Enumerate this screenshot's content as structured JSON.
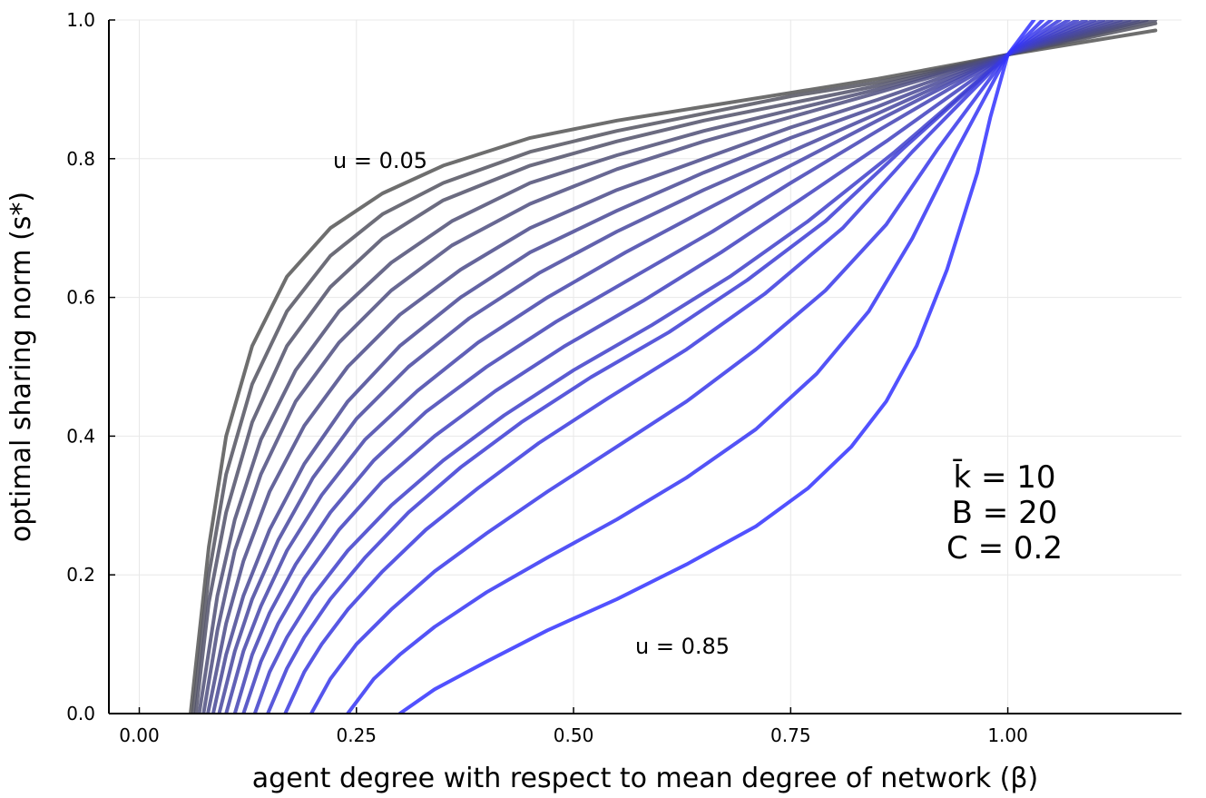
{
  "chart_data": {
    "type": "line",
    "title": "",
    "xlabel": "agent degree with respect to mean degree of network (β)",
    "ylabel": "optimal sharing norm (s*)",
    "xlim": [
      -0.035,
      1.2
    ],
    "ylim": [
      0,
      1
    ],
    "x_ticks": [
      0.0,
      0.25,
      0.5,
      0.75,
      1.0
    ],
    "x_tick_labels": [
      "0.00",
      "0.25",
      "0.50",
      "0.75",
      "1.00"
    ],
    "y_ticks": [
      0.0,
      0.2,
      0.4,
      0.6,
      0.8,
      1.0
    ],
    "y_tick_labels": [
      "0.0",
      "0.2",
      "0.4",
      "0.6",
      "0.8",
      "1.0"
    ],
    "grid": true,
    "legend": "none",
    "color_low_u": "#555555",
    "color_high_u": "#3333ff",
    "series_note": "17 curves for u = 0.05 to 0.85 in steps of 0.05; all pass through (1.0, 0.95)",
    "series": [
      {
        "u": 0.05,
        "x": [
          0.059,
          0.08,
          0.1,
          0.13,
          0.17,
          0.22,
          0.28,
          0.35,
          0.45,
          0.55,
          0.65,
          0.75,
          0.85,
          1.0,
          1.17
        ],
        "y": [
          0.0,
          0.24,
          0.4,
          0.53,
          0.63,
          0.7,
          0.75,
          0.79,
          0.83,
          0.855,
          0.875,
          0.895,
          0.915,
          0.95,
          0.985
        ]
      },
      {
        "u": 0.1,
        "x": [
          0.062,
          0.08,
          0.1,
          0.13,
          0.17,
          0.22,
          0.28,
          0.35,
          0.45,
          0.55,
          0.65,
          0.75,
          0.85,
          1.0,
          1.17
        ],
        "y": [
          0.0,
          0.2,
          0.345,
          0.475,
          0.58,
          0.66,
          0.72,
          0.765,
          0.81,
          0.84,
          0.865,
          0.89,
          0.91,
          0.95,
          0.995
        ]
      },
      {
        "u": 0.15,
        "x": [
          0.065,
          0.08,
          0.1,
          0.13,
          0.17,
          0.22,
          0.28,
          0.35,
          0.45,
          0.55,
          0.65,
          0.75,
          0.85,
          1.0,
          1.17
        ],
        "y": [
          0.0,
          0.16,
          0.29,
          0.42,
          0.53,
          0.615,
          0.685,
          0.74,
          0.79,
          0.825,
          0.855,
          0.88,
          0.905,
          0.95,
          1.0
        ]
      },
      {
        "u": 0.2,
        "x": [
          0.069,
          0.09,
          0.11,
          0.14,
          0.18,
          0.23,
          0.29,
          0.36,
          0.45,
          0.55,
          0.65,
          0.75,
          0.85,
          1.0,
          1.16
        ],
        "y": [
          0.0,
          0.17,
          0.28,
          0.395,
          0.495,
          0.58,
          0.65,
          0.71,
          0.765,
          0.805,
          0.84,
          0.87,
          0.9,
          0.95,
          1.0
        ]
      },
      {
        "u": 0.25,
        "x": [
          0.074,
          0.09,
          0.11,
          0.14,
          0.18,
          0.23,
          0.29,
          0.36,
          0.45,
          0.55,
          0.65,
          0.75,
          0.85,
          1.0,
          1.15
        ],
        "y": [
          0.0,
          0.12,
          0.235,
          0.345,
          0.45,
          0.535,
          0.61,
          0.675,
          0.735,
          0.785,
          0.825,
          0.86,
          0.895,
          0.95,
          1.0
        ]
      },
      {
        "u": 0.3,
        "x": [
          0.079,
          0.1,
          0.12,
          0.15,
          0.19,
          0.24,
          0.3,
          0.37,
          0.45,
          0.55,
          0.65,
          0.75,
          0.85,
          1.0,
          1.14
        ],
        "y": [
          0.0,
          0.13,
          0.22,
          0.32,
          0.415,
          0.5,
          0.575,
          0.64,
          0.7,
          0.755,
          0.8,
          0.845,
          0.885,
          0.95,
          1.0
        ]
      },
      {
        "u": 0.35,
        "x": [
          0.085,
          0.1,
          0.12,
          0.15,
          0.19,
          0.24,
          0.3,
          0.37,
          0.45,
          0.55,
          0.65,
          0.75,
          0.85,
          1.0,
          1.13
        ],
        "y": [
          0.0,
          0.085,
          0.17,
          0.265,
          0.36,
          0.45,
          0.53,
          0.6,
          0.665,
          0.725,
          0.78,
          0.83,
          0.875,
          0.95,
          1.0
        ]
      },
      {
        "u": 0.4,
        "x": [
          0.092,
          0.11,
          0.13,
          0.16,
          0.2,
          0.25,
          0.31,
          0.38,
          0.46,
          0.55,
          0.65,
          0.75,
          0.85,
          1.0,
          1.12
        ],
        "y": [
          0.0,
          0.09,
          0.165,
          0.25,
          0.34,
          0.425,
          0.5,
          0.57,
          0.635,
          0.695,
          0.755,
          0.81,
          0.865,
          0.95,
          1.0
        ]
      },
      {
        "u": 0.45,
        "x": [
          0.1,
          0.12,
          0.14,
          0.17,
          0.21,
          0.26,
          0.32,
          0.39,
          0.47,
          0.56,
          0.65,
          0.75,
          0.85,
          1.0,
          1.11
        ],
        "y": [
          0.0,
          0.09,
          0.155,
          0.235,
          0.315,
          0.395,
          0.465,
          0.535,
          0.6,
          0.665,
          0.725,
          0.79,
          0.855,
          0.95,
          1.0
        ]
      },
      {
        "u": 0.5,
        "x": [
          0.11,
          0.13,
          0.15,
          0.18,
          0.22,
          0.27,
          0.33,
          0.4,
          0.48,
          0.57,
          0.66,
          0.75,
          0.85,
          1.0,
          1.1
        ],
        "y": [
          0.0,
          0.085,
          0.145,
          0.215,
          0.29,
          0.365,
          0.435,
          0.5,
          0.565,
          0.63,
          0.695,
          0.765,
          0.84,
          0.95,
          1.0
        ]
      },
      {
        "u": 0.55,
        "x": [
          0.12,
          0.14,
          0.16,
          0.19,
          0.23,
          0.28,
          0.34,
          0.41,
          0.49,
          0.58,
          0.67,
          0.76,
          0.86,
          1.0,
          1.09
        ],
        "y": [
          0.0,
          0.075,
          0.13,
          0.195,
          0.265,
          0.335,
          0.4,
          0.465,
          0.53,
          0.595,
          0.665,
          0.74,
          0.825,
          0.95,
          1.0
        ]
      },
      {
        "u": 0.6,
        "x": [
          0.133,
          0.15,
          0.17,
          0.2,
          0.24,
          0.29,
          0.35,
          0.42,
          0.5,
          0.59,
          0.68,
          0.77,
          0.87,
          1.0,
          1.08
        ],
        "y": [
          0.0,
          0.06,
          0.11,
          0.17,
          0.235,
          0.3,
          0.365,
          0.43,
          0.495,
          0.56,
          0.63,
          0.71,
          0.81,
          0.95,
          1.0
        ]
      },
      {
        "u": 0.65,
        "x": [
          0.148,
          0.17,
          0.19,
          0.22,
          0.26,
          0.31,
          0.37,
          0.44,
          0.52,
          0.61,
          0.7,
          0.79,
          0.88,
          1.0,
          1.07
        ],
        "y": [
          0.0,
          0.065,
          0.11,
          0.165,
          0.225,
          0.29,
          0.355,
          0.42,
          0.485,
          0.55,
          0.625,
          0.71,
          0.815,
          0.95,
          1.0
        ]
      },
      {
        "u": 0.7,
        "x": [
          0.168,
          0.19,
          0.21,
          0.24,
          0.28,
          0.33,
          0.39,
          0.46,
          0.54,
          0.63,
          0.72,
          0.81,
          0.89,
          1.0,
          1.06
        ],
        "y": [
          0.0,
          0.06,
          0.1,
          0.15,
          0.205,
          0.265,
          0.325,
          0.39,
          0.455,
          0.525,
          0.605,
          0.7,
          0.81,
          0.95,
          1.0
        ]
      },
      {
        "u": 0.75,
        "x": [
          0.198,
          0.22,
          0.25,
          0.29,
          0.34,
          0.4,
          0.47,
          0.55,
          0.63,
          0.71,
          0.79,
          0.86,
          0.92,
          1.0,
          1.05
        ],
        "y": [
          0.0,
          0.05,
          0.1,
          0.15,
          0.205,
          0.26,
          0.32,
          0.385,
          0.45,
          0.525,
          0.61,
          0.705,
          0.815,
          0.95,
          1.0
        ]
      },
      {
        "u": 0.8,
        "x": [
          0.24,
          0.27,
          0.3,
          0.34,
          0.4,
          0.47,
          0.55,
          0.63,
          0.71,
          0.78,
          0.84,
          0.89,
          0.94,
          1.0,
          1.04
        ],
        "y": [
          0.0,
          0.05,
          0.085,
          0.125,
          0.175,
          0.225,
          0.28,
          0.34,
          0.41,
          0.49,
          0.58,
          0.685,
          0.81,
          0.95,
          1.0
        ]
      },
      {
        "u": 0.85,
        "x": [
          0.3,
          0.34,
          0.4,
          0.47,
          0.55,
          0.63,
          0.71,
          0.77,
          0.82,
          0.86,
          0.895,
          0.93,
          0.965,
          0.98,
          1.0,
          1.03
        ],
        "y": [
          0.0,
          0.035,
          0.075,
          0.12,
          0.165,
          0.215,
          0.27,
          0.325,
          0.385,
          0.45,
          0.53,
          0.64,
          0.78,
          0.86,
          0.95,
          1.0
        ]
      }
    ],
    "annotations": [
      {
        "text": "u = 0.05",
        "x": 0.23,
        "y": 0.795
      },
      {
        "text": "u = 0.85",
        "x": 0.57,
        "y": 0.095
      }
    ],
    "parameters": [
      "k̄ = 10",
      "B = 20",
      "C = 0.2"
    ]
  }
}
